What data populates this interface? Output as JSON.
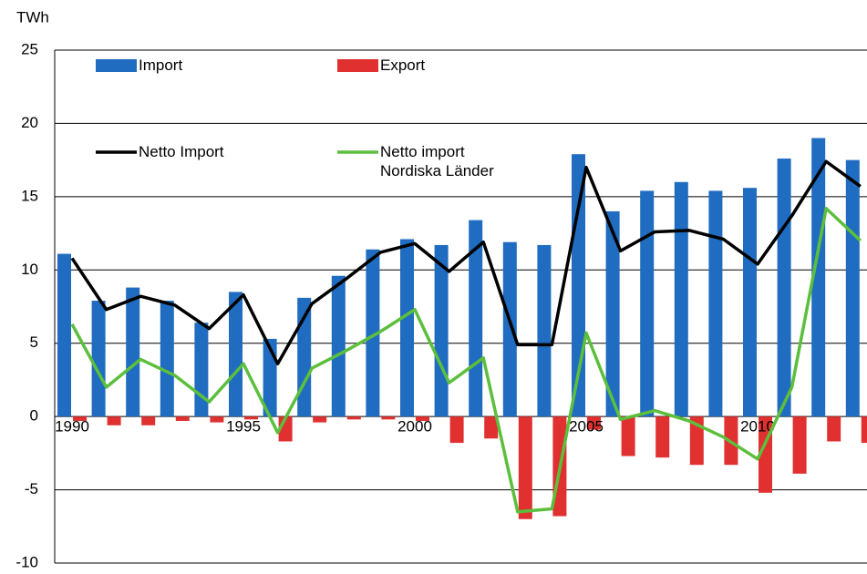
{
  "chart_data": {
    "type": "bar_line",
    "y_label": "TWh",
    "categories": [
      "1990",
      null,
      null,
      null,
      null,
      "1995",
      null,
      null,
      null,
      null,
      "2000",
      null,
      null,
      null,
      null,
      "2005",
      null,
      null,
      null,
      null,
      "2010",
      null,
      null,
      null
    ],
    "series": [
      {
        "name": "Import",
        "kind": "bar",
        "color": "#1f6cc0",
        "values": [
          11.1,
          7.9,
          8.8,
          7.9,
          6.4,
          8.5,
          5.3,
          8.1,
          9.6,
          11.4,
          12.1,
          11.7,
          13.4,
          11.9,
          11.7,
          17.9,
          14.0,
          15.4,
          16.0,
          15.4,
          15.6,
          17.6,
          19.0,
          17.5
        ]
      },
      {
        "name": "Export",
        "kind": "bar",
        "color": "#e03030",
        "values": [
          -0.3,
          -0.6,
          -0.6,
          -0.3,
          -0.4,
          -0.2,
          -1.7,
          -0.4,
          -0.2,
          -0.2,
          -0.3,
          -1.8,
          -1.5,
          -7.0,
          -6.8,
          -0.9,
          -2.7,
          -2.8,
          -3.3,
          -3.3,
          -5.2,
          -3.9,
          -1.7,
          -1.8
        ]
      },
      {
        "name": "Netto Import",
        "kind": "line",
        "color": "#000000",
        "values": [
          10.8,
          7.3,
          8.2,
          7.6,
          6.0,
          8.3,
          3.6,
          7.7,
          9.4,
          11.2,
          11.8,
          9.9,
          11.9,
          4.9,
          4.9,
          17.0,
          11.3,
          12.6,
          12.7,
          12.1,
          10.4,
          13.7,
          17.4,
          15.7
        ]
      },
      {
        "name": "Netto import\nNordiska Länder",
        "kind": "line",
        "color": "#5cbf3c",
        "values": [
          6.3,
          2.0,
          3.9,
          2.8,
          1.0,
          3.6,
          -1.1,
          3.3,
          4.5,
          5.8,
          7.3,
          2.3,
          4.0,
          -6.5,
          -6.3,
          5.7,
          -0.2,
          0.4,
          -0.3,
          -1.4,
          -2.9,
          2.0,
          14.2,
          12.0
        ]
      }
    ],
    "ylim": [
      -10,
      25
    ],
    "yticks": [
      -10,
      -5,
      0,
      5,
      10,
      15,
      20,
      25
    ],
    "grid": true
  }
}
